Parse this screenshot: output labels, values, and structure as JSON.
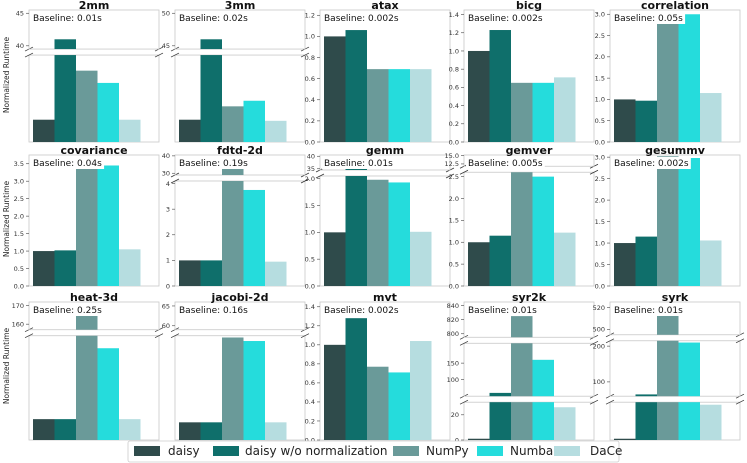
{
  "colors": {
    "daisy": "#2f4b4b",
    "daisy w/o normalization": "#0f6f6b",
    "NumPy": "#6a9a99",
    "Numba": "#25dcdc",
    "DaCe": "#b6dde0"
  },
  "chart_data": {
    "type": "bar",
    "ylabel": "Normalized Runtime",
    "series_names": [
      "daisy",
      "daisy w/o normalization",
      "NumPy",
      "Numba",
      "DaCe"
    ],
    "legend": {
      "placement": "bottom-center",
      "entries": [
        "daisy",
        "daisy w/o normalization",
        "NumPy",
        "Numba",
        "DaCe"
      ]
    },
    "panels": [
      {
        "title": "2mm",
        "baseline": "Baseline: 0.01s",
        "values": [
          1.0,
          41.0,
          3.2,
          2.65,
          1.0
        ],
        "segments": [
          {
            "range": [
              0,
              3.9
            ],
            "ticks": [],
            "tick_labels": []
          },
          {
            "range": [
              39.5,
              45.5
            ],
            "ticks": [
              40,
              45
            ],
            "tick_labels": [
              "40",
              "45"
            ]
          }
        ]
      },
      {
        "title": "3mm",
        "baseline": "Baseline: 0.02s",
        "values": [
          1.0,
          46.0,
          1.6,
          1.85,
          0.95
        ],
        "segments": [
          {
            "range": [
              0,
              3.9
            ],
            "ticks": [],
            "tick_labels": []
          },
          {
            "range": [
              44.5,
              50.5
            ],
            "ticks": [
              45,
              50
            ],
            "tick_labels": [
              "45",
              "50"
            ]
          }
        ]
      },
      {
        "title": "atax",
        "baseline": "Baseline: 0.002s",
        "values": [
          1.0,
          1.06,
          0.69,
          0.69,
          0.69
        ],
        "segments": [
          {
            "range": [
              0,
              1.25
            ],
            "ticks": [
              0,
              0.2,
              0.4,
              0.6,
              0.8,
              1.0,
              1.2
            ],
            "tick_labels": [
              "0.0",
              "0.2",
              "0.4",
              "0.6",
              "0.8",
              "1.0",
              "1.2"
            ]
          }
        ]
      },
      {
        "title": "bicg",
        "baseline": "Baseline: 0.002s",
        "values": [
          1.0,
          1.23,
          0.65,
          0.65,
          0.71
        ],
        "segments": [
          {
            "range": [
              0,
              1.45
            ],
            "ticks": [
              0,
              0.2,
              0.4,
              0.6,
              0.8,
              1.0,
              1.2,
              1.4
            ],
            "tick_labels": [
              "0.0",
              "0.2",
              "0.4",
              "0.6",
              "0.8",
              "1.0",
              "1.2",
              "1.4"
            ]
          }
        ]
      },
      {
        "title": "correlation",
        "baseline": "Baseline: 0.05s",
        "values": [
          1.0,
          0.97,
          2.8,
          3.0,
          1.15
        ],
        "segments": [
          {
            "range": [
              0,
              3.1
            ],
            "ticks": [
              0,
              0.5,
              1.0,
              1.5,
              2.0,
              2.5,
              3.0
            ],
            "tick_labels": [
              "0.0",
              "0.5",
              "1.0",
              "1.5",
              "2.0",
              "2.5",
              "3.0"
            ]
          }
        ]
      },
      {
        "title": "covariance",
        "baseline": "Baseline: 0.04s",
        "values": [
          1.0,
          1.02,
          3.4,
          3.45,
          1.05
        ],
        "segments": [
          {
            "range": [
              0,
              3.75
            ],
            "ticks": [
              0,
              0.5,
              1.0,
              1.5,
              2.0,
              2.5,
              3.0,
              3.5
            ],
            "tick_labels": [
              "0.0",
              "0.5",
              "1.0",
              "1.5",
              "2.0",
              "2.5",
              "3.0",
              "3.5"
            ]
          }
        ]
      },
      {
        "title": "fdtd-2d",
        "baseline": "Baseline: 0.19s",
        "values": [
          1.0,
          1.0,
          34.0,
          3.75,
          0.95
        ],
        "segments": [
          {
            "range": [
              0,
              4.1
            ],
            "ticks": [
              0,
              1,
              2,
              3,
              4
            ],
            "tick_labels": [
              "0",
              "1",
              "2",
              "3",
              "4"
            ]
          },
          {
            "range": [
              29,
              40.5
            ],
            "ticks": [
              30,
              40
            ],
            "tick_labels": [
              "30",
              "40"
            ]
          }
        ]
      },
      {
        "title": "gemm",
        "baseline": "Baseline: 0.01s",
        "values": [
          1.0,
          35.0,
          1.98,
          1.93,
          1.01
        ],
        "segments": [
          {
            "range": [
              0,
              2.05
            ],
            "ticks": [
              0,
              0.5,
              1.0,
              1.5,
              2.0
            ],
            "tick_labels": [
              "0.0",
              "0.5",
              "1.0",
              "1.5",
              "2.0"
            ]
          },
          {
            "range": [
              34.5,
              40.5
            ],
            "ticks": [
              35,
              40
            ],
            "tick_labels": [
              "35",
              "40"
            ]
          }
        ]
      },
      {
        "title": "gemver",
        "baseline": "Baseline: 0.005s",
        "values": [
          1.0,
          1.15,
          12.0,
          2.5,
          1.22
        ],
        "segments": [
          {
            "range": [
              0,
              2.6
            ],
            "ticks": [
              0,
              0.5,
              1.0,
              1.5,
              2.0,
              2.5
            ],
            "tick_labels": [
              "0.0",
              "0.5",
              "1.0",
              "1.5",
              "2.0",
              "2.5"
            ]
          },
          {
            "range": [
              11.8,
              15.2
            ],
            "ticks": [
              12.5,
              15.0
            ],
            "tick_labels": [
              "12.5",
              "15.0"
            ]
          }
        ]
      },
      {
        "title": "gesummv",
        "baseline": "Baseline: 0.002s",
        "values": [
          1.0,
          1.15,
          3.02,
          2.98,
          1.06
        ],
        "segments": [
          {
            "range": [
              0,
              3.05
            ],
            "ticks": [
              0,
              0.5,
              1.0,
              1.5,
              2.0,
              2.5,
              3.0
            ],
            "tick_labels": [
              "0.0",
              "0.5",
              "1.0",
              "1.5",
              "2.0",
              "2.5",
              "3.0"
            ]
          }
        ]
      },
      {
        "title": "heat-3d",
        "baseline": "Baseline: 0.25s",
        "values": [
          1.0,
          1.0,
          165.0,
          4.4,
          1.0
        ],
        "segments": [
          {
            "range": [
              0,
              5.0
            ],
            "ticks": [],
            "tick_labels": []
          },
          {
            "range": [
              157,
              172
            ],
            "ticks": [
              160,
              170
            ],
            "tick_labels": [
              "160",
              "170"
            ]
          }
        ]
      },
      {
        "title": "jacobi-2d",
        "baseline": "Baseline: 0.16s",
        "values": [
          1.0,
          1.0,
          5.8,
          5.6,
          1.0
        ],
        "segments": [
          {
            "range": [
              0,
              5.9
            ],
            "ticks": [],
            "tick_labels": []
          },
          {
            "range": [
              59,
              66
            ],
            "ticks": [
              60,
              65
            ],
            "tick_labels": [
              "60",
              "65"
            ]
          }
        ]
      },
      {
        "title": "mvt",
        "baseline": "Baseline: 0.002s",
        "values": [
          1.0,
          1.28,
          0.77,
          0.71,
          1.04
        ],
        "segments": [
          {
            "range": [
              0,
              1.45
            ],
            "ticks": [
              0,
              0.2,
              0.4,
              0.6,
              0.8,
              1.0,
              1.2,
              1.4
            ],
            "tick_labels": [
              "0.0",
              "0.2",
              "0.4",
              "0.6",
              "0.8",
              "1.0",
              "1.2",
              "1.4"
            ]
          }
        ]
      },
      {
        "title": "syr2k",
        "baseline": "Baseline: 0.01s",
        "values": [
          1.0,
          60.0,
          825.0,
          160.0,
          26.0
        ],
        "segments": [
          {
            "range": [
              0,
              30
            ],
            "ticks": [
              0,
              20
            ],
            "tick_labels": [
              "0",
              "20"
            ]
          },
          {
            "range": [
              50,
              210
            ],
            "ticks": [
              100,
              150
            ],
            "tick_labels": [
              "100",
              "150"
            ]
          },
          {
            "range": [
              795,
              845
            ],
            "ticks": [
              800,
              820,
              840
            ],
            "tick_labels": [
              "800",
              "820",
              "840"
            ]
          }
        ]
      },
      {
        "title": "syrk",
        "baseline": "Baseline: 0.01s",
        "values": [
          1.0,
          65.0,
          515.0,
          210.0,
          28.0
        ],
        "segments": [
          {
            "range": [
              0,
              30
            ],
            "ticks": [],
            "tick_labels": []
          },
          {
            "range": [
              60,
              215
            ],
            "ticks": [
              100,
              200
            ],
            "tick_labels": [
              "100",
              "200"
            ]
          },
          {
            "range": [
              495,
              525
            ],
            "ticks": [
              500,
              520
            ],
            "tick_labels": [
              "500",
              "520"
            ]
          }
        ]
      }
    ]
  }
}
